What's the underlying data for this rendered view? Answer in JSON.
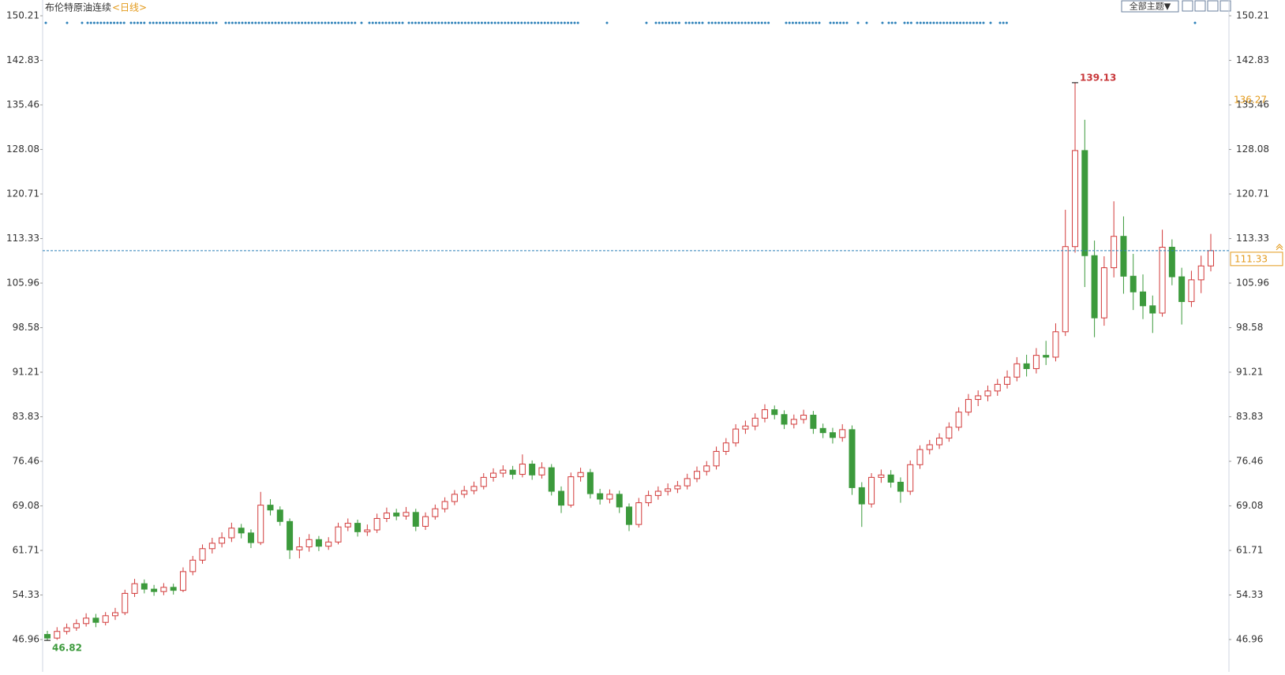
{
  "chart_data": {
    "type": "candlestick",
    "title": "布伦特原油连续",
    "period": "<日线>",
    "theme_button": "全部主题▼",
    "up_color": "#d23a3a",
    "down_color": "#3c9a3c",
    "ylim": [
      46.96,
      150.21
    ],
    "yticks": [
      46.96,
      54.33,
      61.71,
      69.08,
      76.46,
      83.83,
      91.21,
      98.58,
      105.96,
      113.33,
      120.71,
      128.08,
      135.46,
      142.83,
      150.21
    ],
    "high_label": 139.13,
    "low_label": 46.82,
    "last_price": 111.33,
    "right_marker": 136.27,
    "open": [
      47.8,
      47.2,
      48.3,
      48.9,
      49.6,
      50.5,
      49.8,
      50.9,
      51.4,
      54.6,
      56.2,
      55.3,
      54.9,
      55.6,
      55.1,
      58.2,
      60.1,
      62.0,
      62.9,
      63.8,
      65.4,
      64.6,
      63.0,
      69.2,
      68.4,
      66.5,
      61.8,
      62.3,
      63.5,
      62.4,
      63.1,
      65.6,
      66.2,
      64.8,
      65.1,
      67.0,
      67.9,
      67.4,
      68.0,
      65.7,
      67.3,
      68.6,
      69.8,
      71.0,
      71.6,
      72.3,
      73.8,
      74.5,
      75.0,
      74.3,
      76.0,
      74.2,
      75.4,
      71.5,
      69.2,
      73.9,
      74.6,
      71.1,
      70.2,
      71.0,
      68.9,
      66.0,
      69.6,
      70.8,
      71.5,
      71.9,
      72.4,
      73.6,
      74.8,
      75.7,
      78.1,
      79.5,
      81.8,
      82.3,
      83.6,
      85.0,
      84.2,
      82.6,
      83.4,
      84.1,
      81.9,
      81.2,
      80.4,
      81.7,
      72.1,
      69.4,
      73.8,
      74.2,
      73.0,
      71.5,
      75.9,
      78.4,
      79.2,
      80.3,
      82.1,
      84.6,
      86.7,
      87.3,
      88.1,
      89.2,
      90.4,
      92.6,
      91.8,
      94.0,
      93.7,
      97.9,
      112.0,
      127.9,
      110.5,
      100.2,
      108.5,
      113.7,
      107.1,
      104.5,
      102.2,
      101.0,
      111.9,
      107.0,
      102.9,
      106.5,
      108.8
    ],
    "high": [
      48.4,
      49.0,
      49.6,
      50.3,
      51.3,
      51.2,
      51.5,
      52.2,
      55.2,
      57.0,
      56.9,
      56.0,
      56.3,
      56.2,
      58.9,
      60.8,
      62.7,
      63.8,
      64.7,
      66.3,
      66.1,
      65.2,
      71.4,
      70.2,
      69.0,
      67.0,
      63.9,
      64.4,
      64.1,
      63.9,
      66.3,
      67.0,
      66.8,
      66.0,
      67.8,
      68.8,
      68.6,
      68.9,
      68.6,
      68.0,
      69.3,
      70.5,
      71.7,
      72.4,
      73.1,
      74.5,
      75.3,
      75.8,
      75.7,
      77.6,
      76.6,
      76.3,
      76.0,
      72.3,
      74.6,
      75.4,
      75.2,
      71.9,
      71.8,
      71.6,
      69.5,
      70.4,
      71.6,
      72.3,
      72.8,
      73.2,
      74.4,
      75.6,
      76.5,
      78.9,
      80.3,
      82.6,
      83.2,
      84.4,
      85.9,
      85.7,
      84.9,
      84.2,
      85.0,
      84.8,
      82.7,
      82.0,
      82.6,
      82.4,
      73.0,
      74.5,
      75.1,
      75.0,
      73.8,
      76.6,
      79.1,
      80.0,
      81.1,
      82.9,
      85.4,
      87.6,
      88.2,
      89.0,
      90.1,
      91.5,
      93.7,
      94.1,
      95.2,
      96.4,
      99.3,
      118.1,
      139.13,
      133.0,
      113.0,
      110.4,
      119.5,
      117.0,
      110.8,
      107.4,
      103.9,
      114.8,
      113.2,
      108.5,
      108.0,
      110.5,
      114.1
    ],
    "low": [
      46.82,
      46.9,
      47.8,
      48.4,
      49.1,
      49.0,
      49.3,
      50.2,
      51.0,
      54.0,
      54.6,
      54.2,
      54.3,
      54.4,
      54.8,
      57.6,
      59.5,
      61.2,
      62.2,
      63.1,
      63.7,
      62.1,
      62.6,
      67.5,
      65.8,
      60.3,
      60.4,
      61.5,
      61.6,
      61.8,
      62.7,
      64.9,
      64.0,
      64.1,
      64.6,
      66.4,
      66.7,
      66.8,
      64.9,
      65.1,
      66.8,
      68.0,
      69.2,
      70.4,
      71.0,
      71.8,
      73.1,
      73.8,
      73.5,
      73.8,
      73.4,
      73.6,
      70.8,
      67.9,
      68.8,
      73.1,
      70.3,
      69.3,
      69.5,
      67.9,
      64.9,
      65.5,
      69.0,
      70.1,
      70.8,
      71.2,
      71.8,
      73.0,
      74.1,
      75.1,
      77.5,
      78.9,
      81.0,
      81.6,
      82.9,
      83.4,
      81.8,
      81.9,
      82.7,
      81.0,
      80.3,
      79.4,
      79.7,
      70.9,
      65.6,
      68.8,
      72.9,
      72.1,
      69.6,
      70.9,
      75.2,
      77.6,
      78.5,
      79.7,
      81.5,
      84.0,
      85.6,
      86.4,
      87.3,
      88.5,
      89.7,
      90.5,
      91.0,
      92.4,
      93.0,
      97.2,
      111.0,
      105.3,
      97.0,
      98.9,
      106.9,
      104.2,
      101.5,
      100.0,
      97.7,
      100.4,
      105.6,
      99.1,
      102.0,
      104.3,
      107.9
    ],
    "close": [
      47.2,
      48.3,
      48.9,
      49.6,
      50.5,
      49.8,
      50.9,
      51.4,
      54.6,
      56.2,
      55.3,
      54.9,
      55.6,
      55.1,
      58.2,
      60.1,
      62.0,
      62.9,
      63.8,
      65.4,
      64.6,
      63.0,
      69.2,
      68.4,
      66.5,
      61.8,
      62.3,
      63.5,
      62.4,
      63.1,
      65.6,
      66.2,
      64.8,
      65.1,
      67.0,
      67.9,
      67.4,
      68.0,
      65.7,
      67.3,
      68.6,
      69.8,
      71.0,
      71.6,
      72.3,
      73.8,
      74.5,
      75.0,
      74.3,
      76.0,
      74.2,
      75.4,
      71.5,
      69.2,
      73.9,
      74.6,
      71.1,
      70.2,
      71.0,
      68.9,
      66.0,
      69.6,
      70.8,
      71.5,
      71.9,
      72.4,
      73.6,
      74.8,
      75.7,
      78.1,
      79.5,
      81.8,
      82.3,
      83.6,
      85.0,
      84.2,
      82.6,
      83.4,
      84.1,
      81.9,
      81.2,
      80.4,
      81.7,
      72.1,
      69.4,
      73.8,
      74.2,
      73.0,
      71.5,
      75.9,
      78.4,
      79.2,
      80.3,
      82.1,
      84.6,
      86.7,
      87.3,
      88.1,
      89.2,
      90.4,
      92.6,
      91.8,
      94.0,
      93.7,
      97.9,
      112.0,
      127.9,
      110.5,
      100.2,
      108.5,
      113.7,
      107.1,
      104.5,
      102.2,
      101.0,
      111.9,
      107.0,
      102.9,
      106.5,
      108.8,
      111.33
    ]
  }
}
